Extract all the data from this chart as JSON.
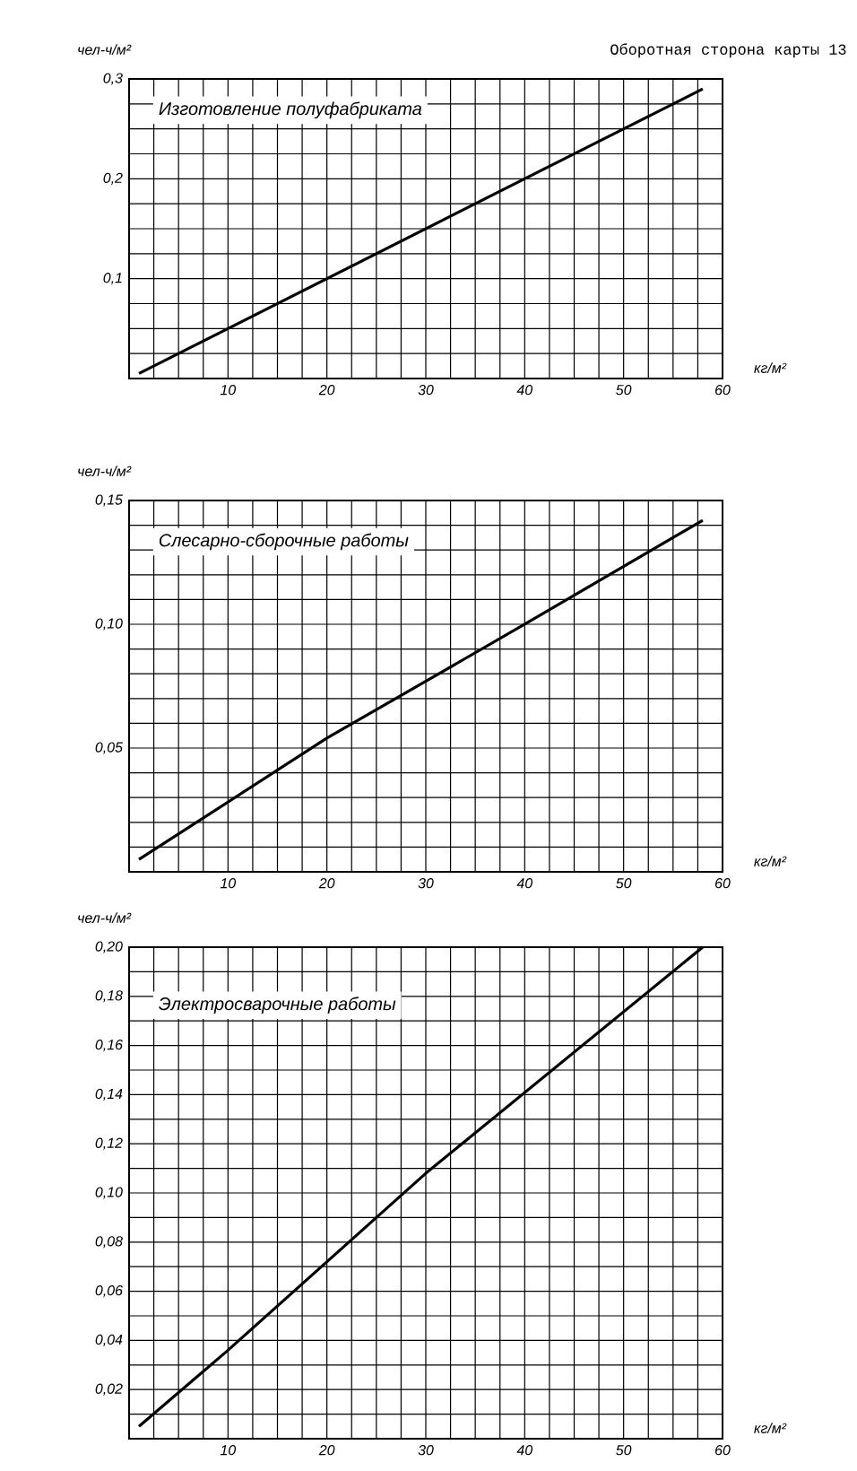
{
  "chart_data": [
    {
      "type": "line",
      "title": "Изготовление полуфабриката",
      "xlabel": "кг/м²",
      "ylabel": "чел-ч/м²",
      "annotations": [
        "Оборотная сторона карты 13"
      ],
      "color": "#000000",
      "grid": true,
      "x": [
        1,
        58
      ],
      "values": [
        0.005,
        0.29
      ],
      "xlim": [
        0,
        60
      ],
      "ylim": [
        0,
        0.3
      ],
      "xticks": [
        {
          "value": 0,
          "label": null
        },
        {
          "value": 2.5,
          "label": null
        },
        {
          "value": 5,
          "label": null
        },
        {
          "value": 7.5,
          "label": null
        },
        10,
        {
          "value": 12.5,
          "label": null
        },
        {
          "value": 15,
          "label": null
        },
        {
          "value": 17.5,
          "label": null
        },
        20,
        {
          "value": 22.5,
          "label": null
        },
        {
          "value": 25,
          "label": null
        },
        {
          "value": 27.5,
          "label": null
        },
        30,
        {
          "value": 32.5,
          "label": null
        },
        {
          "value": 35,
          "label": null
        },
        {
          "value": 37.5,
          "label": null
        },
        40,
        {
          "value": 42.5,
          "label": null
        },
        {
          "value": 45,
          "label": null
        },
        {
          "value": 47.5,
          "label": null
        },
        50,
        {
          "value": 52.5,
          "label": null
        },
        {
          "value": 55,
          "label": null
        },
        {
          "value": 57.5,
          "label": null
        },
        60
      ],
      "yticks": [
        {
          "value": 0,
          "label": null
        },
        {
          "value": 0.025,
          "label": null
        },
        {
          "value": 0.05,
          "label": null
        },
        {
          "value": 0.075,
          "label": null
        },
        {
          "value": 0.1,
          "label": "0,1"
        },
        {
          "value": 0.125,
          "label": null
        },
        {
          "value": 0.15,
          "label": null
        },
        {
          "value": 0.175,
          "label": null
        },
        {
          "value": 0.2,
          "label": "0,2"
        },
        {
          "value": 0.225,
          "label": null
        },
        {
          "value": 0.25,
          "label": null
        },
        {
          "value": 0.275,
          "label": null
        },
        {
          "value": 0.3,
          "label": "0,3"
        }
      ]
    },
    {
      "type": "line",
      "title": "Слесарно-сборочные работы",
      "xlabel": "кг/м²",
      "ylabel": "чел-ч/м²",
      "color": "#000000",
      "grid": true,
      "x": [
        1,
        20,
        40,
        58
      ],
      "values": [
        0.005,
        0.054,
        0.1,
        0.142
      ],
      "xlim": [
        0,
        60
      ],
      "ylim": [
        0,
        0.15
      ],
      "xticks": [
        {
          "value": 0,
          "label": null
        },
        {
          "value": 2.5,
          "label": null
        },
        {
          "value": 5,
          "label": null
        },
        {
          "value": 7.5,
          "label": null
        },
        10,
        {
          "value": 12.5,
          "label": null
        },
        {
          "value": 15,
          "label": null
        },
        {
          "value": 17.5,
          "label": null
        },
        20,
        {
          "value": 22.5,
          "label": null
        },
        {
          "value": 25,
          "label": null
        },
        {
          "value": 27.5,
          "label": null
        },
        30,
        {
          "value": 32.5,
          "label": null
        },
        {
          "value": 35,
          "label": null
        },
        {
          "value": 37.5,
          "label": null
        },
        40,
        {
          "value": 42.5,
          "label": null
        },
        {
          "value": 45,
          "label": null
        },
        {
          "value": 47.5,
          "label": null
        },
        50,
        {
          "value": 52.5,
          "label": null
        },
        {
          "value": 55,
          "label": null
        },
        {
          "value": 57.5,
          "label": null
        },
        60
      ],
      "yticks": [
        {
          "value": 0,
          "label": null
        },
        {
          "value": 0.01,
          "label": null
        },
        {
          "value": 0.02,
          "label": null
        },
        {
          "value": 0.03,
          "label": null
        },
        {
          "value": 0.04,
          "label": null
        },
        {
          "value": 0.05,
          "label": "0,05"
        },
        {
          "value": 0.06,
          "label": null
        },
        {
          "value": 0.07,
          "label": null
        },
        {
          "value": 0.08,
          "label": null
        },
        {
          "value": 0.09,
          "label": null
        },
        {
          "value": 0.1,
          "label": "0,10"
        },
        {
          "value": 0.11,
          "label": null
        },
        {
          "value": 0.12,
          "label": null
        },
        {
          "value": 0.13,
          "label": null
        },
        {
          "value": 0.14,
          "label": null
        },
        {
          "value": 0.15,
          "label": "0,15"
        }
      ]
    },
    {
      "type": "line",
      "title": "Электросварочные работы",
      "xlabel": "кг/м²",
      "ylabel": "чел-ч/м²",
      "color": "#000000",
      "grid": true,
      "x": [
        1,
        10,
        30,
        58
      ],
      "values": [
        0.005,
        0.036,
        0.108,
        0.2
      ],
      "xlim": [
        0,
        60
      ],
      "ylim": [
        0,
        0.2
      ],
      "xticks": [
        {
          "value": 0,
          "label": null
        },
        {
          "value": 2.5,
          "label": null
        },
        {
          "value": 5,
          "label": null
        },
        {
          "value": 7.5,
          "label": null
        },
        10,
        {
          "value": 12.5,
          "label": null
        },
        {
          "value": 15,
          "label": null
        },
        {
          "value": 17.5,
          "label": null
        },
        20,
        {
          "value": 22.5,
          "label": null
        },
        {
          "value": 25,
          "label": null
        },
        {
          "value": 27.5,
          "label": null
        },
        30,
        {
          "value": 32.5,
          "label": null
        },
        {
          "value": 35,
          "label": null
        },
        {
          "value": 37.5,
          "label": null
        },
        40,
        {
          "value": 42.5,
          "label": null
        },
        {
          "value": 45,
          "label": null
        },
        {
          "value": 47.5,
          "label": null
        },
        50,
        {
          "value": 52.5,
          "label": null
        },
        {
          "value": 55,
          "label": null
        },
        {
          "value": 57.5,
          "label": null
        },
        60
      ],
      "yticks": [
        {
          "value": 0,
          "label": null
        },
        {
          "value": 0.01,
          "label": null
        },
        {
          "value": 0.02,
          "label": "0,02"
        },
        {
          "value": 0.03,
          "label": null
        },
        {
          "value": 0.04,
          "label": "0,04"
        },
        {
          "value": 0.05,
          "label": null
        },
        {
          "value": 0.06,
          "label": "0,06"
        },
        {
          "value": 0.07,
          "label": null
        },
        {
          "value": 0.08,
          "label": "0,08"
        },
        {
          "value": 0.09,
          "label": null
        },
        {
          "value": 0.1,
          "label": "0,10"
        },
        {
          "value": 0.11,
          "label": null
        },
        {
          "value": 0.12,
          "label": "0,12"
        },
        {
          "value": 0.13,
          "label": null
        },
        {
          "value": 0.14,
          "label": "0,14"
        },
        {
          "value": 0.15,
          "label": null
        },
        {
          "value": 0.16,
          "label": "0,16"
        },
        {
          "value": 0.17,
          "label": null
        },
        {
          "value": 0.18,
          "label": "0,18"
        },
        {
          "value": 0.19,
          "label": null
        },
        {
          "value": 0.2,
          "label": "0,20"
        }
      ]
    }
  ]
}
